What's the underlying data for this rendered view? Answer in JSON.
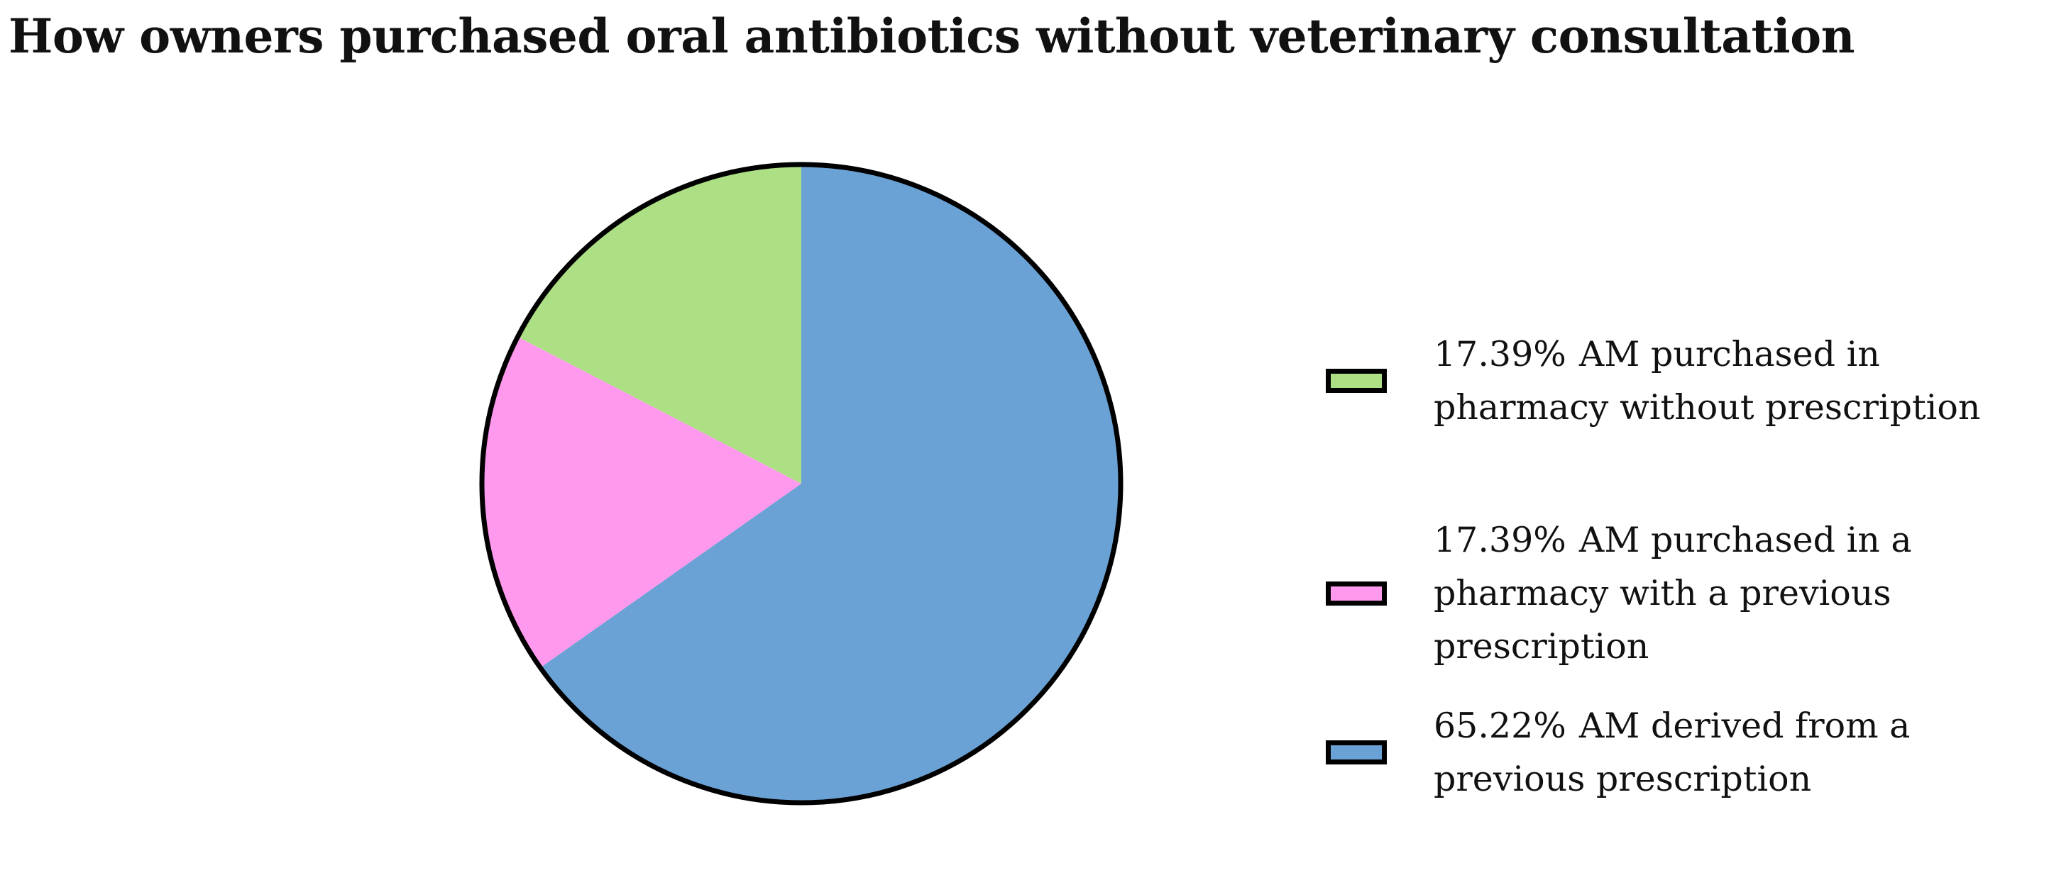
{
  "chart_data": {
    "type": "pie",
    "title": "How owners purchased oral antibiotics without veterinary consultation",
    "start_angle_deg": 0,
    "direction": "clockwise",
    "slices": [
      {
        "label": "AM derived from a previous prescription",
        "value": 65.22,
        "value_label": "65.22%",
        "color": "#6BA2D5"
      },
      {
        "label": "AM purchased in a pharmacy with a previous prescription",
        "value": 17.39,
        "value_label": "17.39%",
        "color": "#FF99EE"
      },
      {
        "label": "AM purchased in pharmacy without prescription",
        "value": 17.39,
        "value_label": "17.39%",
        "color": "#ADE084"
      }
    ],
    "legend_order": [
      2,
      1,
      0
    ],
    "legend_position": "right",
    "outline_color": "#000000"
  }
}
